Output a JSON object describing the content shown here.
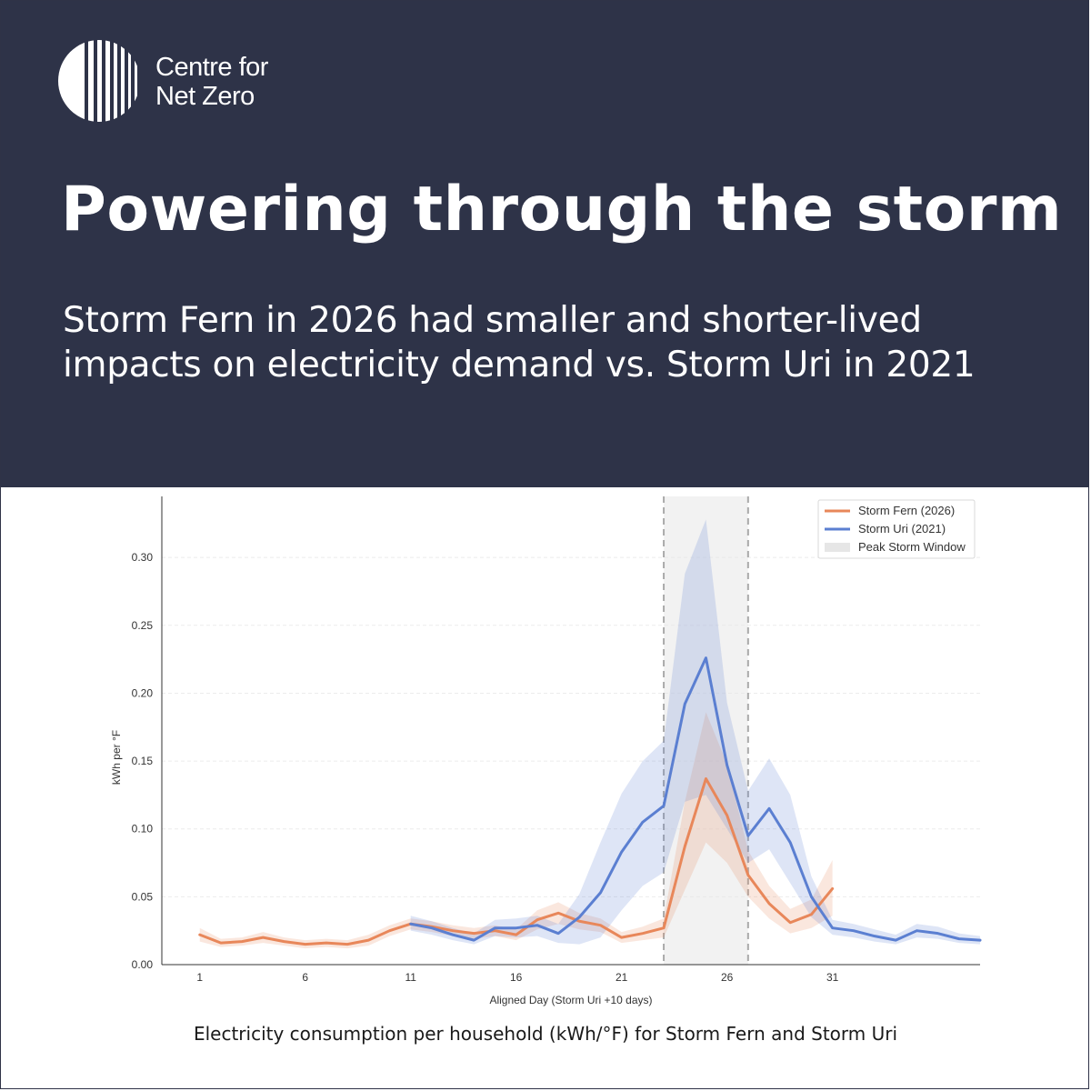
{
  "brand": {
    "line1": "Centre for",
    "line2": "Net Zero"
  },
  "headline": "Powering through the storm",
  "subheadline": "Storm Fern in 2026 had smaller and shorter-lived impacts on electricity demand vs. Storm Uri in 2021",
  "caption": "Electricity consumption per household (kWh/°F) for Storm Fern and Storm Uri",
  "colors": {
    "header_bg": "#2e3348",
    "fern": "#e8875a",
    "uri": "#5b7fd1",
    "window": "#e6e6e6"
  },
  "chart_data": {
    "type": "line",
    "title": "",
    "xlabel": "Aligned Day (Storm Uri +10 days)",
    "ylabel": "kWh per °F",
    "xlim": [
      -0.8,
      38
    ],
    "ylim": [
      0,
      0.345
    ],
    "xticks": [
      1,
      6,
      11,
      16,
      21,
      26,
      31
    ],
    "yticks": [
      0.0,
      0.05,
      0.1,
      0.15,
      0.2,
      0.25,
      0.3
    ],
    "ytick_labels": [
      "0.00",
      "0.05",
      "0.10",
      "0.15",
      "0.20",
      "0.25",
      "0.30"
    ],
    "peak_window": {
      "start": 23,
      "end": 27,
      "label": "Peak Storm Window"
    },
    "legend": "top-right",
    "series": [
      {
        "name": "Storm Fern (2026)",
        "color": "#e8875a",
        "x": [
          1,
          2,
          3,
          4,
          5,
          6,
          7,
          8,
          9,
          10,
          11,
          12,
          13,
          14,
          15,
          16,
          17,
          18,
          19,
          20,
          21,
          22,
          23,
          24,
          25,
          26,
          27,
          28,
          29,
          30,
          31
        ],
        "values": [
          0.022,
          0.016,
          0.017,
          0.02,
          0.017,
          0.015,
          0.016,
          0.015,
          0.018,
          0.025,
          0.03,
          0.028,
          0.025,
          0.023,
          0.025,
          0.022,
          0.033,
          0.038,
          0.032,
          0.029,
          0.02,
          0.023,
          0.027,
          0.087,
          0.137,
          0.11,
          0.066,
          0.045,
          0.031,
          0.037,
          0.056
        ],
        "lower": [
          0.017,
          0.013,
          0.014,
          0.016,
          0.014,
          0.012,
          0.013,
          0.012,
          0.014,
          0.021,
          0.026,
          0.024,
          0.021,
          0.019,
          0.021,
          0.018,
          0.026,
          0.03,
          0.026,
          0.024,
          0.016,
          0.018,
          0.02,
          0.055,
          0.09,
          0.075,
          0.05,
          0.034,
          0.023,
          0.027,
          0.036
        ],
        "upper": [
          0.027,
          0.019,
          0.02,
          0.024,
          0.02,
          0.018,
          0.019,
          0.018,
          0.022,
          0.029,
          0.034,
          0.032,
          0.029,
          0.027,
          0.029,
          0.026,
          0.04,
          0.046,
          0.038,
          0.034,
          0.024,
          0.028,
          0.034,
          0.12,
          0.186,
          0.148,
          0.084,
          0.058,
          0.041,
          0.048,
          0.077
        ]
      },
      {
        "name": "Storm Uri (2021)",
        "color": "#5b7fd1",
        "x": [
          11,
          12,
          13,
          14,
          15,
          16,
          17,
          18,
          19,
          20,
          21,
          22,
          23,
          24,
          25,
          26,
          27,
          28,
          29,
          30,
          31,
          32,
          33,
          34,
          35,
          36,
          37,
          38
        ],
        "values": [
          0.03,
          0.027,
          0.022,
          0.018,
          0.027,
          0.027,
          0.029,
          0.023,
          0.035,
          0.053,
          0.083,
          0.105,
          0.117,
          0.192,
          0.226,
          0.147,
          0.095,
          0.115,
          0.09,
          0.05,
          0.027,
          0.025,
          0.021,
          0.018,
          0.025,
          0.023,
          0.019,
          0.018
        ],
        "lower": [
          0.025,
          0.022,
          0.018,
          0.015,
          0.021,
          0.02,
          0.021,
          0.016,
          0.015,
          0.02,
          0.04,
          0.058,
          0.068,
          0.12,
          0.125,
          0.1,
          0.075,
          0.085,
          0.06,
          0.035,
          0.022,
          0.02,
          0.017,
          0.015,
          0.02,
          0.019,
          0.016,
          0.015
        ],
        "upper": [
          0.036,
          0.032,
          0.027,
          0.023,
          0.033,
          0.034,
          0.036,
          0.03,
          0.052,
          0.09,
          0.126,
          0.15,
          0.165,
          0.288,
          0.328,
          0.193,
          0.128,
          0.152,
          0.125,
          0.065,
          0.033,
          0.03,
          0.026,
          0.022,
          0.03,
          0.028,
          0.023,
          0.021
        ]
      }
    ]
  }
}
